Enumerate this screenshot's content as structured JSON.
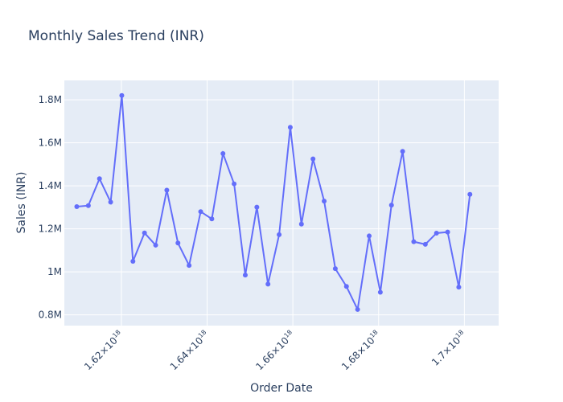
{
  "chart_data": {
    "type": "line",
    "title": "Monthly Sales Trend (INR)",
    "xlabel": "Order Date",
    "ylabel": "Sales (INR)",
    "ylim": [
      750000,
      1890000
    ],
    "xlim": [
      1.6067e+18,
      1.708e+18
    ],
    "grid": true,
    "legend": "none",
    "colors": {
      "line": "#636efa",
      "plot_bg": "#e5ecf6",
      "grid": "#ffffff",
      "text": "#2a3f5f"
    },
    "y_ticks": [
      {
        "value": 800000,
        "label": "0.8M"
      },
      {
        "value": 1000000,
        "label": "1M"
      },
      {
        "value": 1200000,
        "label": "1.2M"
      },
      {
        "value": 1400000,
        "label": "1.4M"
      },
      {
        "value": 1600000,
        "label": "1.6M"
      },
      {
        "value": 1800000,
        "label": "1.8M"
      }
    ],
    "x_ticks": [
      {
        "value": 1.62e+18,
        "mantissa": "1.62×10",
        "exponent": "18"
      },
      {
        "value": 1.64e+18,
        "mantissa": "1.64×10",
        "exponent": "18"
      },
      {
        "value": 1.66e+18,
        "mantissa": "1.66×10",
        "exponent": "18"
      },
      {
        "value": 1.68e+18,
        "mantissa": "1.68×10",
        "exponent": "18"
      },
      {
        "value": 1.7e+18,
        "mantissa": "1.7×10",
        "exponent": "18"
      }
    ],
    "series": [
      {
        "x": [
          1.6096e+18,
          1.6123e+18,
          1.6149e+18,
          1.6175e+18,
          1.6201e+18,
          1.6227e+18,
          1.6254e+18,
          1.628e+18,
          1.6306e+18,
          1.6332e+18,
          1.6358e+18,
          1.6385e+18,
          1.6411e+18,
          1.6437e+18,
          1.6463e+18,
          1.6489e+18,
          1.6516e+18,
          1.6542e+18,
          1.6568e+18,
          1.6594e+18,
          1.662e+18,
          1.6647e+18,
          1.6673e+18,
          1.6699e+18,
          1.6725e+18,
          1.6751e+18,
          1.6778e+18,
          1.6804e+18,
          1.683e+18,
          1.6856e+18,
          1.6882e+18,
          1.6909e+18,
          1.6935e+18,
          1.6961e+18,
          1.6987e+18,
          1.7013e+18
        ],
        "y": [
          1303000,
          1308000,
          1433000,
          1324000,
          1820000,
          1049000,
          1181000,
          1124000,
          1380000,
          1134000,
          1030000,
          1280000,
          1246000,
          1550000,
          1409000,
          985000,
          1301000,
          943000,
          1173000,
          1672000,
          1222000,
          1525000,
          1329000,
          1015000,
          932000,
          825000,
          1167000,
          905000,
          1310000,
          1560000,
          1140000,
          1128000,
          1180000,
          1185000,
          929000,
          1360000
        ]
      }
    ]
  }
}
